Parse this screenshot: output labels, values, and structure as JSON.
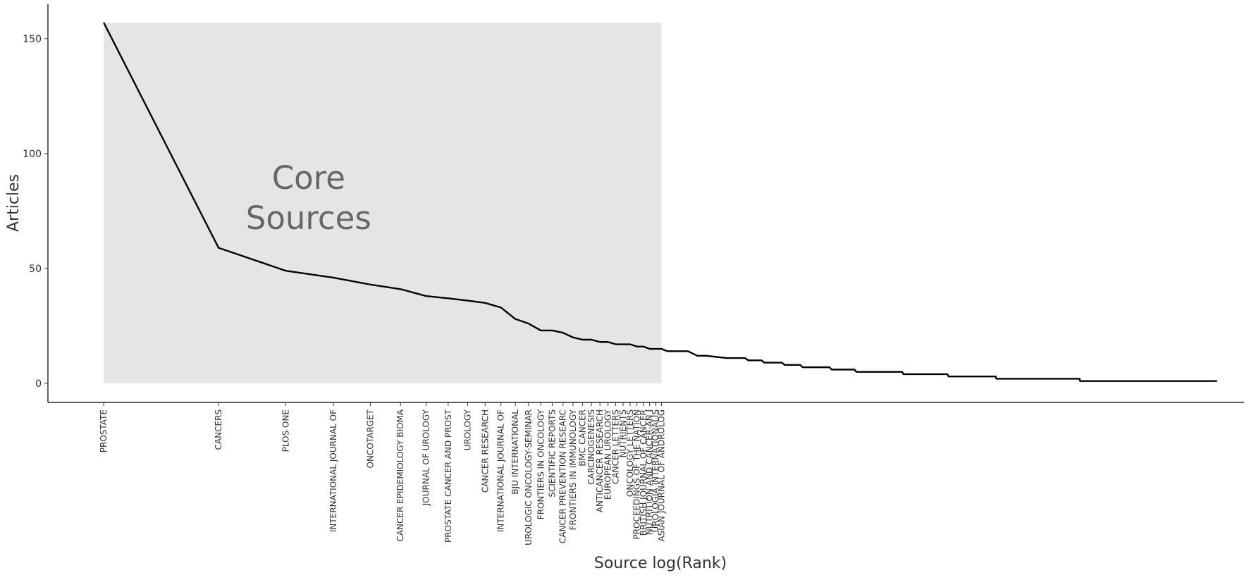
{
  "chart_data": {
    "type": "line",
    "x_label": "Source log(Rank)",
    "y_label": "Articles",
    "log_x": true,
    "xlim": [
      0.714,
      977
    ],
    "ylim": [
      -8.3,
      165
    ],
    "yticks": [
      0,
      50,
      100,
      150
    ],
    "color": "#000000",
    "source_labels": [
      "PROSTATE",
      "CANCERS",
      "PLOS ONE",
      "INTERNATIONAL JOURNAL OF",
      "ONCOTARGET",
      "CANCER EPIDEMIOLOGY BIOMA",
      "JOURNAL OF UROLOGY",
      "PROSTATE CANCER AND PROST",
      "UROLOGY",
      "CANCER RESEARCH",
      "INTERNATIONAL JOURNAL OF",
      "BJU INTERNATIONAL",
      "UROLOGIC ONCOLOGY-SEMINAR",
      "FRONTIERS IN ONCOLOGY",
      "SCIENTIFIC REPORTS",
      "CANCER PREVENTION RESEARC",
      "FRONTIERS IN IMMUNOLOGY",
      "BMC CANCER",
      "CARCINOGENESIS",
      "ANTICANCER RESEARCH",
      "EUROPEAN UROLOGY",
      "CANCER LETTERS",
      "NUTRIENTS",
      "ONCOLOGY LETTERS",
      "PROCEEDINGS OF THE NATION",
      "BRITISH JOURNAL OF CANCER",
      "NUTRITION AND CANCER-AN I",
      "UROLOGIA INTERNATIONALIS",
      "ASIAN JOURNAL OF ANDROLOG"
    ],
    "x": [
      1,
      2,
      3,
      4,
      5,
      6,
      7,
      8,
      9,
      10,
      11,
      12,
      13,
      14,
      15,
      16,
      17,
      18,
      19,
      20,
      21,
      22,
      23,
      24,
      25,
      26,
      27,
      28,
      29,
      30,
      34,
      35,
      36,
      38,
      43,
      44,
      48,
      49,
      53,
      54,
      60,
      61,
      67,
      68,
      80,
      81,
      93,
      94,
      124,
      125,
      163,
      164,
      218,
      219,
      362,
      363,
      830
    ],
    "values": [
      157,
      59,
      49,
      46,
      43,
      41,
      38,
      37,
      36,
      35,
      33,
      28,
      26,
      23,
      23,
      22,
      20,
      19,
      19,
      18,
      18,
      17,
      17,
      17,
      16,
      16,
      15,
      15,
      15,
      14,
      14,
      13,
      12,
      12,
      11,
      11,
      11,
      10,
      10,
      9,
      9,
      8,
      8,
      7,
      7,
      6,
      6,
      5,
      5,
      4,
      4,
      3,
      3,
      2,
      2,
      1,
      1
    ],
    "core_sources": {
      "label_lines": [
        "Core",
        "Sources"
      ],
      "rank_range": [
        1,
        29
      ],
      "color": "#e5e5e5"
    }
  }
}
